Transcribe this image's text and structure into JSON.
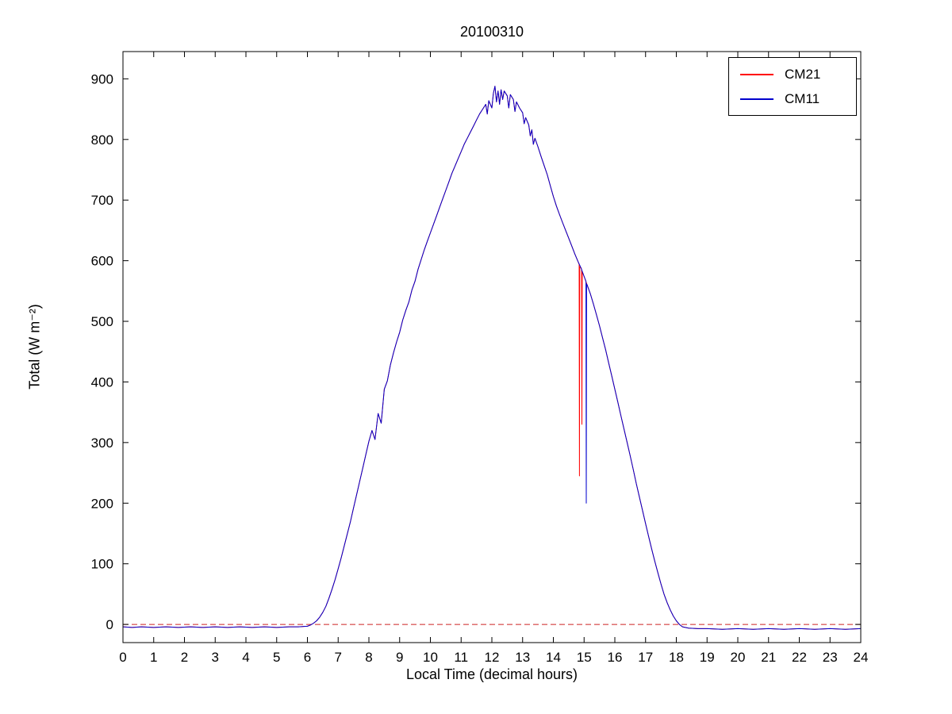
{
  "chart_data": {
    "type": "line",
    "title": "20100310",
    "xlabel": "Local Time (decimal hours)",
    "ylabel": "Total (W m⁻²)",
    "xlim": [
      0,
      24
    ],
    "ylim": [
      -30,
      945
    ],
    "xticks": [
      0,
      1,
      2,
      3,
      4,
      5,
      6,
      7,
      8,
      9,
      10,
      11,
      12,
      13,
      14,
      15,
      16,
      17,
      18,
      19,
      20,
      21,
      22,
      23,
      24
    ],
    "yticks": [
      0,
      100,
      200,
      300,
      400,
      500,
      600,
      700,
      800,
      900
    ],
    "grid": false,
    "plot_bg": "#ffffff",
    "axis_color": "#000000",
    "zero_line": {
      "y": 0,
      "color": "#cc2222",
      "style": "dashed"
    },
    "legend": {
      "position": "northeast",
      "entries": [
        {
          "label": "CM21",
          "color": "#ff0000"
        },
        {
          "label": "CM11",
          "color": "#0000cd"
        }
      ]
    },
    "base_points": [
      [
        0,
        -4
      ],
      [
        0.3,
        -5
      ],
      [
        0.6,
        -4
      ],
      [
        1,
        -5
      ],
      [
        1.4,
        -4
      ],
      [
        1.8,
        -5
      ],
      [
        2.2,
        -4
      ],
      [
        2.6,
        -5
      ],
      [
        3,
        -4
      ],
      [
        3.4,
        -5
      ],
      [
        3.8,
        -4
      ],
      [
        4.2,
        -5
      ],
      [
        4.6,
        -4
      ],
      [
        5,
        -5
      ],
      [
        5.4,
        -4
      ],
      [
        5.7,
        -4
      ],
      [
        6,
        -3
      ],
      [
        6.1,
        -1
      ],
      [
        6.2,
        2
      ],
      [
        6.3,
        6
      ],
      [
        6.4,
        12
      ],
      [
        6.5,
        20
      ],
      [
        6.6,
        30
      ],
      [
        6.7,
        43
      ],
      [
        6.8,
        58
      ],
      [
        6.9,
        74
      ],
      [
        7,
        92
      ],
      [
        7.1,
        110
      ],
      [
        7.2,
        130
      ],
      [
        7.3,
        150
      ],
      [
        7.4,
        170
      ],
      [
        7.5,
        192
      ],
      [
        7.6,
        214
      ],
      [
        7.7,
        236
      ],
      [
        7.8,
        258
      ],
      [
        7.9,
        280
      ],
      [
        8,
        302
      ],
      [
        8.1,
        320
      ],
      [
        8.2,
        305
      ],
      [
        8.3,
        348
      ],
      [
        8.4,
        332
      ],
      [
        8.5,
        388
      ],
      [
        8.6,
        402
      ],
      [
        8.7,
        428
      ],
      [
        8.8,
        448
      ],
      [
        8.9,
        466
      ],
      [
        9,
        482
      ],
      [
        9.1,
        502
      ],
      [
        9.2,
        518
      ],
      [
        9.3,
        532
      ],
      [
        9.4,
        552
      ],
      [
        9.5,
        566
      ],
      [
        9.6,
        586
      ],
      [
        9.7,
        602
      ],
      [
        9.8,
        618
      ],
      [
        9.9,
        632
      ],
      [
        10,
        646
      ],
      [
        10.1,
        660
      ],
      [
        10.2,
        674
      ],
      [
        10.3,
        688
      ],
      [
        10.4,
        702
      ],
      [
        10.5,
        716
      ],
      [
        10.6,
        730
      ],
      [
        10.7,
        744
      ],
      [
        10.8,
        756
      ],
      [
        10.9,
        768
      ],
      [
        11,
        780
      ],
      [
        11.1,
        792
      ],
      [
        11.2,
        802
      ],
      [
        11.3,
        812
      ],
      [
        11.4,
        822
      ],
      [
        11.5,
        832
      ],
      [
        11.6,
        842
      ],
      [
        11.7,
        850
      ],
      [
        11.8,
        858
      ],
      [
        11.85,
        842
      ],
      [
        11.9,
        864
      ],
      [
        12,
        852
      ],
      [
        12.05,
        876
      ],
      [
        12.1,
        888
      ],
      [
        12.15,
        862
      ],
      [
        12.2,
        880
      ],
      [
        12.25,
        858
      ],
      [
        12.3,
        882
      ],
      [
        12.35,
        866
      ],
      [
        12.4,
        880
      ],
      [
        12.5,
        872
      ],
      [
        12.55,
        852
      ],
      [
        12.6,
        874
      ],
      [
        12.7,
        866
      ],
      [
        12.75,
        846
      ],
      [
        12.8,
        862
      ],
      [
        12.9,
        852
      ],
      [
        13,
        844
      ],
      [
        13.05,
        826
      ],
      [
        13.1,
        836
      ],
      [
        13.2,
        824
      ],
      [
        13.25,
        806
      ],
      [
        13.3,
        816
      ],
      [
        13.35,
        792
      ],
      [
        13.4,
        802
      ],
      [
        13.5,
        788
      ],
      [
        13.6,
        772
      ],
      [
        13.7,
        757
      ],
      [
        13.8,
        742
      ],
      [
        13.9,
        724
      ],
      [
        14,
        706
      ],
      [
        14.1,
        690
      ],
      [
        14.2,
        676
      ],
      [
        14.3,
        663
      ],
      [
        14.4,
        650
      ],
      [
        14.5,
        637
      ],
      [
        14.6,
        624
      ],
      [
        14.7,
        611
      ],
      [
        14.8,
        599
      ],
      [
        14.9,
        588
      ],
      [
        15,
        574
      ],
      [
        15.1,
        560
      ],
      [
        15.2,
        546
      ],
      [
        15.3,
        529
      ],
      [
        15.4,
        511
      ],
      [
        15.5,
        493
      ],
      [
        15.6,
        473
      ],
      [
        15.7,
        453
      ],
      [
        15.8,
        431
      ],
      [
        15.9,
        410
      ],
      [
        16,
        388
      ],
      [
        16.1,
        366
      ],
      [
        16.2,
        344
      ],
      [
        16.3,
        322
      ],
      [
        16.4,
        300
      ],
      [
        16.5,
        278
      ],
      [
        16.6,
        255
      ],
      [
        16.7,
        232
      ],
      [
        16.8,
        210
      ],
      [
        16.9,
        188
      ],
      [
        17,
        166
      ],
      [
        17.1,
        145
      ],
      [
        17.2,
        124
      ],
      [
        17.3,
        104
      ],
      [
        17.4,
        85
      ],
      [
        17.5,
        67
      ],
      [
        17.6,
        50
      ],
      [
        17.7,
        36
      ],
      [
        17.8,
        24
      ],
      [
        17.9,
        14
      ],
      [
        18,
        6
      ],
      [
        18.1,
        0
      ],
      [
        18.2,
        -4
      ],
      [
        18.4,
        -6
      ],
      [
        18.7,
        -7
      ],
      [
        19,
        -7
      ],
      [
        19.5,
        -8
      ],
      [
        20,
        -7
      ],
      [
        20.5,
        -8
      ],
      [
        21,
        -7
      ],
      [
        21.5,
        -8
      ],
      [
        22,
        -7
      ],
      [
        22.5,
        -8
      ],
      [
        23,
        -7
      ],
      [
        23.5,
        -8
      ],
      [
        24,
        -7
      ]
    ],
    "series": [
      {
        "name": "CM21",
        "color": "#ff0000",
        "deviation_points": [
          [
            14.84,
            594
          ],
          [
            14.85,
            245
          ],
          [
            14.86,
            590
          ],
          [
            14.92,
            586
          ],
          [
            14.93,
            330
          ],
          [
            14.94,
            582
          ]
        ]
      },
      {
        "name": "CM11",
        "color": "#0000cd",
        "deviation_points": [
          [
            15.06,
            566
          ],
          [
            15.07,
            200
          ],
          [
            15.08,
            562
          ]
        ]
      }
    ]
  }
}
